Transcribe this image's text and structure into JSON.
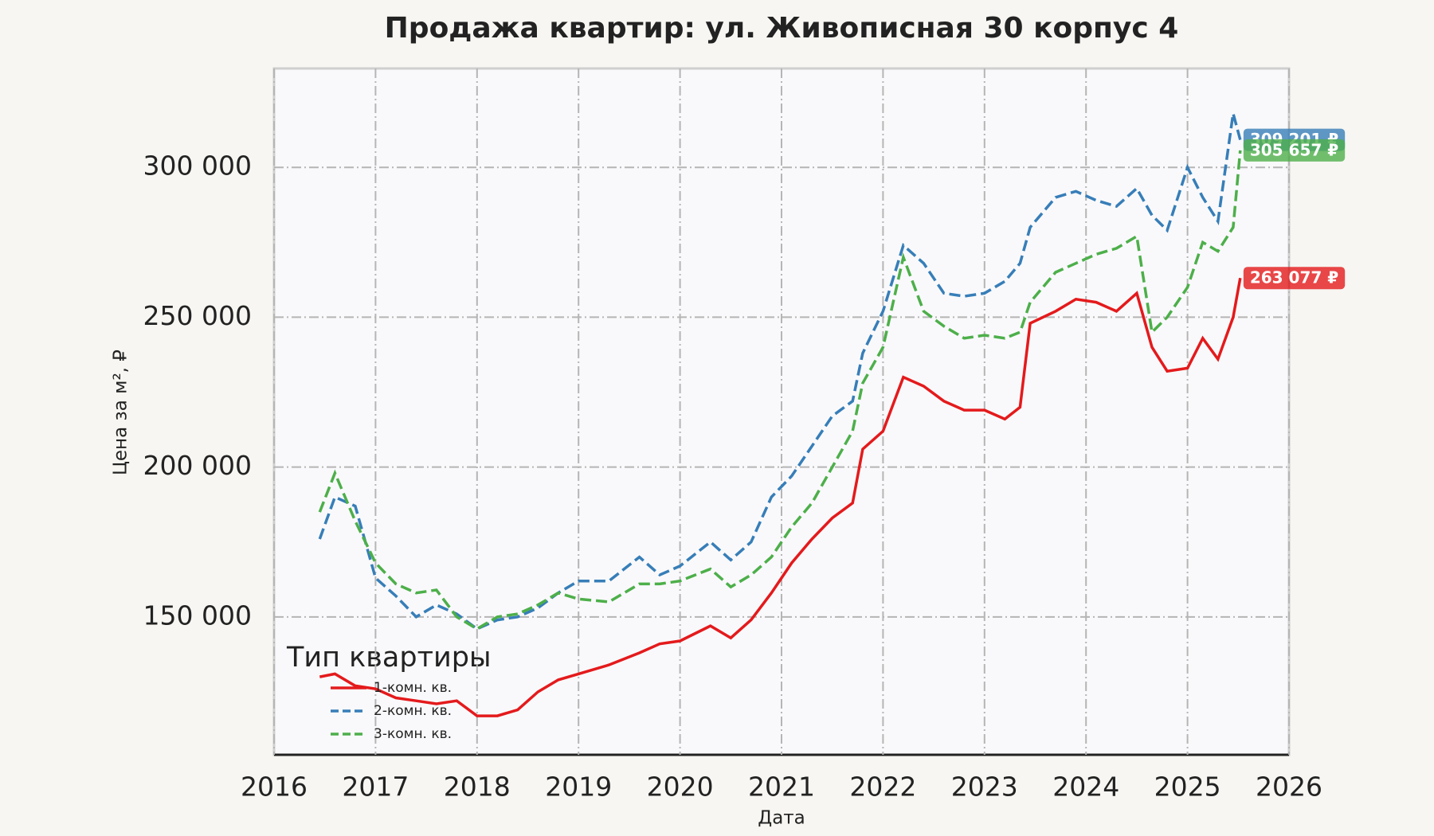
{
  "chart_data": {
    "type": "line",
    "title": "Продажа квартир: ул. Живописная 30 корпус 4",
    "x_label": "Дата",
    "y_label": "Цена за м², ₽",
    "legend_title": "Тип квартиры",
    "legend_position": "lower left",
    "grid": true,
    "xlim": [
      2016,
      2026
    ],
    "xticks": [
      2016,
      2017,
      2018,
      2019,
      2020,
      2021,
      2022,
      2023,
      2024,
      2025,
      2026
    ],
    "ylim": [
      104000,
      333000
    ],
    "yticks": [
      {
        "value": 150000,
        "label": "150 000"
      },
      {
        "value": 200000,
        "label": "200 000"
      },
      {
        "value": 250000,
        "label": "250 000"
      },
      {
        "value": 300000,
        "label": "300 000"
      }
    ],
    "x": [
      2016.45,
      2016.6,
      2016.8,
      2017.0,
      2017.2,
      2017.4,
      2017.6,
      2017.8,
      2018.0,
      2018.2,
      2018.4,
      2018.6,
      2018.8,
      2019.0,
      2019.3,
      2019.6,
      2019.8,
      2020.0,
      2020.3,
      2020.5,
      2020.7,
      2020.9,
      2021.1,
      2021.3,
      2021.5,
      2021.7,
      2021.8,
      2022.0,
      2022.2,
      2022.4,
      2022.6,
      2022.8,
      2023.0,
      2023.2,
      2023.35,
      2023.45,
      2023.7,
      2023.9,
      2024.1,
      2024.3,
      2024.5,
      2024.65,
      2024.8,
      2025.0,
      2025.15,
      2025.3,
      2025.45,
      2025.52
    ],
    "series": [
      {
        "name": "1-комн. кв.",
        "color": "#e41a1c",
        "line_style": "solid",
        "values": [
          130000,
          131000,
          127000,
          126000,
          123000,
          122000,
          121000,
          122000,
          117000,
          117000,
          119000,
          125000,
          129000,
          131000,
          134000,
          138000,
          141000,
          142000,
          147000,
          143000,
          149000,
          158000,
          168000,
          176000,
          183000,
          188000,
          206000,
          212000,
          230000,
          227000,
          222000,
          219000,
          219000,
          216000,
          220000,
          248000,
          252000,
          256000,
          255000,
          252000,
          258000,
          240000,
          232000,
          233000,
          243000,
          236000,
          250000,
          263077
        ],
        "value_labels": [
          null,
          null,
          null,
          null,
          null,
          null,
          null,
          null,
          null,
          null,
          null,
          null,
          null,
          null,
          null,
          null,
          null,
          null,
          null,
          null,
          null,
          null,
          null,
          null,
          null,
          null,
          null,
          null,
          null,
          null,
          null,
          null,
          null,
          null,
          null,
          null,
          null,
          null,
          null,
          null,
          null,
          null,
          null,
          null,
          null,
          null,
          null,
          "263 077 ₽"
        ]
      },
      {
        "name": "2-комн. кв.",
        "color": "#377eb8",
        "line_style": "dashed",
        "values": [
          176000,
          190000,
          187000,
          163000,
          157000,
          150000,
          154000,
          151000,
          146000,
          149000,
          150000,
          153000,
          158000,
          162000,
          162000,
          170000,
          164000,
          167000,
          175000,
          169000,
          175000,
          190000,
          197000,
          207000,
          217000,
          222000,
          238000,
          252000,
          274000,
          268000,
          258000,
          257000,
          258000,
          262000,
          268000,
          280000,
          290000,
          292000,
          289000,
          287000,
          293000,
          284000,
          279000,
          300000,
          290000,
          282000,
          318000,
          309201
        ],
        "value_labels": [
          null,
          null,
          null,
          null,
          null,
          null,
          null,
          null,
          null,
          null,
          null,
          null,
          null,
          null,
          null,
          null,
          null,
          null,
          null,
          null,
          null,
          null,
          null,
          null,
          null,
          null,
          null,
          null,
          null,
          null,
          null,
          null,
          null,
          null,
          null,
          null,
          null,
          null,
          null,
          null,
          null,
          null,
          null,
          null,
          null,
          null,
          null,
          "309 201 ₽"
        ]
      },
      {
        "name": "3-комн. кв.",
        "color": "#4daf4a",
        "line_style": "dashed",
        "values": [
          185000,
          198000,
          182000,
          168000,
          161000,
          158000,
          159000,
          150000,
          146000,
          150000,
          151000,
          154000,
          158000,
          156000,
          155000,
          161000,
          161000,
          162000,
          166000,
          160000,
          164000,
          170000,
          180000,
          188000,
          200000,
          212000,
          228000,
          240000,
          270000,
          252000,
          247000,
          243000,
          244000,
          243000,
          245000,
          255000,
          265000,
          268000,
          271000,
          273000,
          277000,
          245000,
          250000,
          260000,
          275000,
          272000,
          280000,
          305657
        ],
        "value_labels": [
          null,
          null,
          null,
          null,
          null,
          null,
          null,
          null,
          null,
          null,
          null,
          null,
          null,
          null,
          null,
          null,
          null,
          null,
          null,
          null,
          null,
          null,
          null,
          null,
          null,
          null,
          null,
          null,
          null,
          null,
          null,
          null,
          null,
          null,
          null,
          null,
          null,
          null,
          null,
          null,
          null,
          null,
          null,
          null,
          null,
          null,
          null,
          "305 657 ₽"
        ]
      }
    ]
  }
}
